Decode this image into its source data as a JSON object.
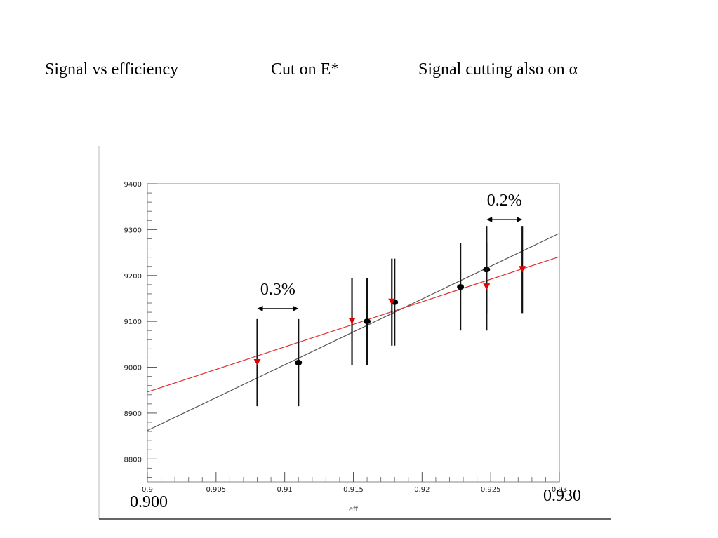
{
  "header": {
    "left": "Signal vs efficiency",
    "middle": "Cut on E*",
    "right": "Signal cutting also on α"
  },
  "chart_data": {
    "type": "scatter",
    "xlabel": "eff",
    "ylabel": "",
    "xlim": [
      0.9,
      0.93
    ],
    "ylim": [
      8750,
      9400
    ],
    "x_ticks": [
      "0.9",
      "0.905",
      "0.91",
      "0.915",
      "0.92",
      "0.925",
      "0.93"
    ],
    "y_ticks": [
      "8800",
      "8900",
      "9000",
      "9100",
      "9200",
      "9300",
      "9400"
    ],
    "overlay_labels": {
      "x_min": "0.900",
      "x_max": "0.930"
    },
    "series": [
      {
        "marker": "circle",
        "color": "#000000",
        "points": [
          {
            "x": 0.911,
            "y": 9010,
            "err": 95
          },
          {
            "x": 0.916,
            "y": 9100,
            "err": 95
          },
          {
            "x": 0.918,
            "y": 9142,
            "err": 95
          },
          {
            "x": 0.9228,
            "y": 9175,
            "err": 95
          },
          {
            "x": 0.9247,
            "y": 9213,
            "err": 95
          }
        ],
        "fit": {
          "x0": 0.9,
          "y0": 8862,
          "x1": 0.93,
          "y1": 9292,
          "color": "#555555"
        }
      },
      {
        "marker": "triangle-down",
        "color": "#e00000",
        "points": [
          {
            "x": 0.908,
            "y": 9010,
            "err": 95
          },
          {
            "x": 0.9149,
            "y": 9100,
            "err": 95
          },
          {
            "x": 0.9178,
            "y": 9142,
            "err": 95
          },
          {
            "x": 0.9247,
            "y": 9175,
            "err": 95
          },
          {
            "x": 0.9273,
            "y": 9213,
            "err": 95
          }
        ],
        "fit": {
          "x0": 0.9,
          "y0": 8946,
          "x1": 0.93,
          "y1": 9241,
          "color": "#e03030"
        }
      }
    ],
    "annotations": [
      {
        "text": "0.3%",
        "x0": 0.908,
        "x1": 0.911,
        "y": 9128
      },
      {
        "text": "0.2%",
        "x0": 0.9247,
        "x1": 0.9273,
        "y": 9322
      }
    ],
    "grid": false
  }
}
